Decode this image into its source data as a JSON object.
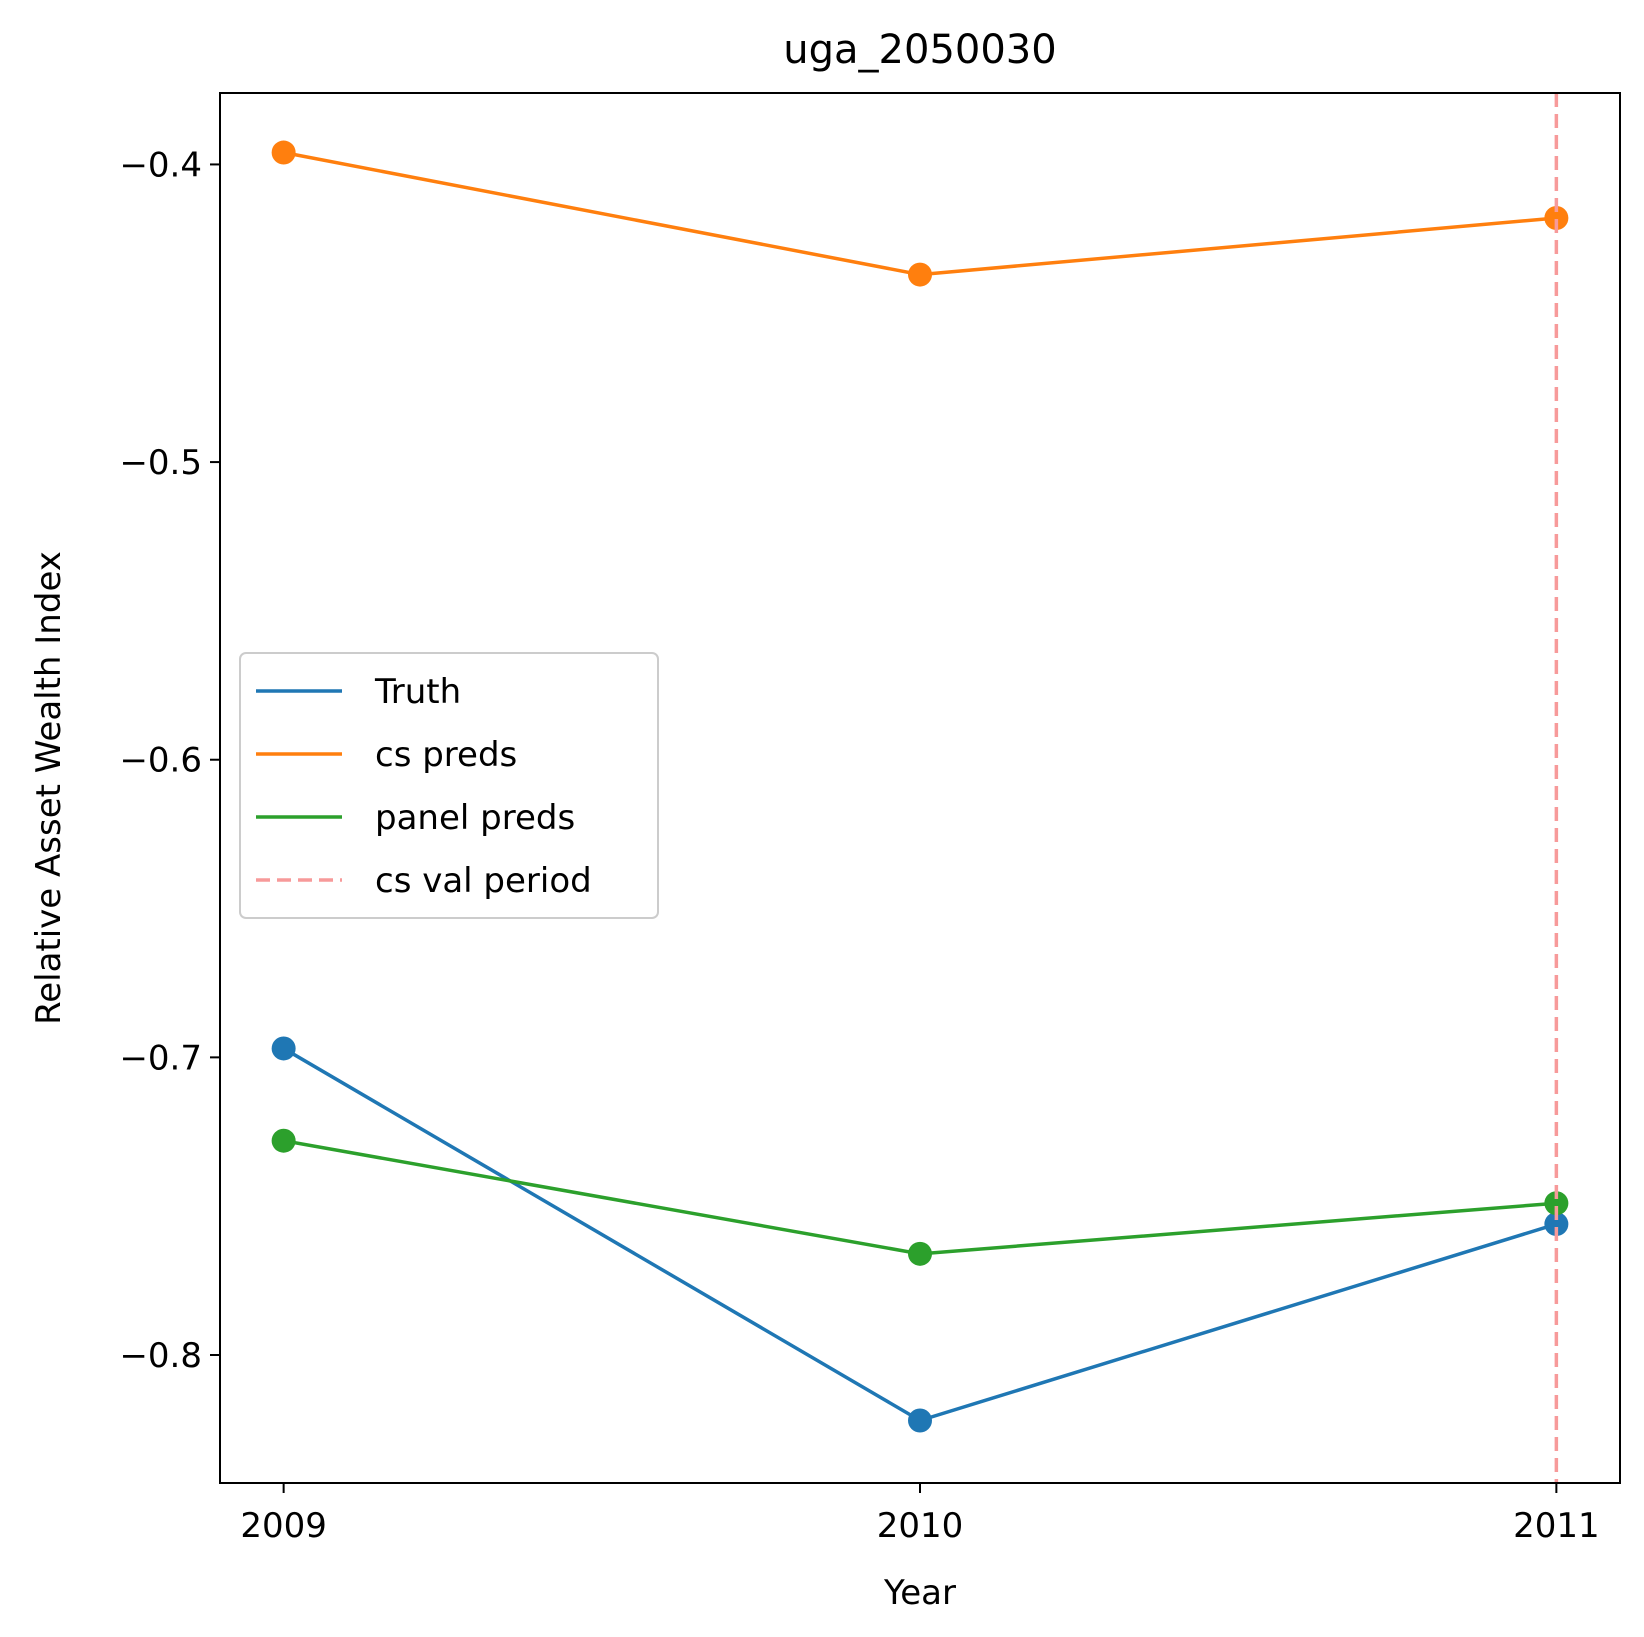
{
  "chart_data": {
    "type": "line",
    "title": "uga_2050030",
    "xlabel": "Year",
    "ylabel": "Relative Asset Wealth Index",
    "x": [
      2009,
      2010,
      2011
    ],
    "xtick_labels": [
      "2009",
      "2010",
      "2011"
    ],
    "yticks": [
      -0.4,
      -0.5,
      -0.6,
      -0.7,
      -0.8
    ],
    "ytick_labels": [
      "−0.4",
      "−0.5",
      "−0.6",
      "−0.7",
      "−0.8"
    ],
    "xlim": [
      2008.9,
      2011.1
    ],
    "ylim": [
      -0.843,
      -0.376
    ],
    "grid": false,
    "legend_position": "center-left",
    "series": [
      {
        "name": "Truth",
        "color": "#1f77b4",
        "values": [
          -0.697,
          -0.822,
          -0.756
        ],
        "marker": "circle",
        "style": "solid"
      },
      {
        "name": "cs preds",
        "color": "#ff7f0e",
        "values": [
          -0.396,
          -0.437,
          -0.418
        ],
        "marker": "circle",
        "style": "solid"
      },
      {
        "name": "panel preds",
        "color": "#2ca02c",
        "values": [
          -0.728,
          -0.766,
          -0.749
        ],
        "marker": "circle",
        "style": "solid"
      }
    ],
    "vlines": [
      {
        "name": "cs val period",
        "x": 2011,
        "color": "#f79a9a",
        "style": "dashed"
      }
    ]
  }
}
